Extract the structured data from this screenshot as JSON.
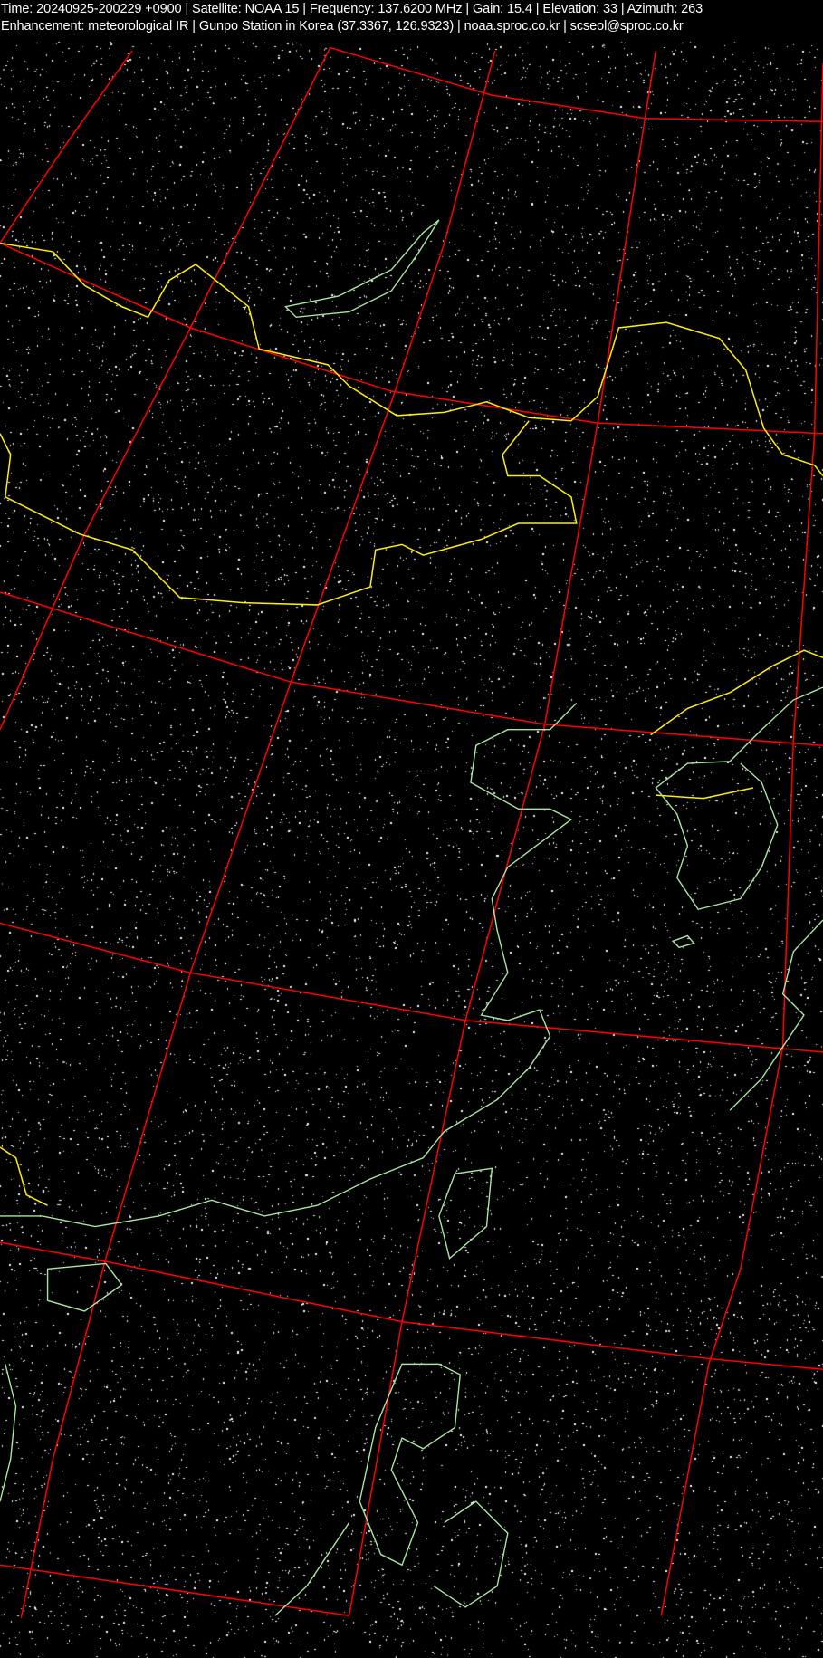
{
  "header": {
    "line1": "Time: 20240925-200229 +0900  |  Satellite: NOAA 15  |  Frequency: 137.6200 MHz  |  Gain: 15.4  |  Elevation: 33  |  Azimuth: 263",
    "line2": "Enhancement: meteorological IR  |  Gunpo Station in Korea (37.3367, 126.9323)  |  noaa.sproc.co.kr   |  scseol@sproc.co.kr"
  },
  "colors": {
    "background": "#000000",
    "graticule": "#ff0000",
    "borders": "#ffee00",
    "coastlines": "#a8e6a0",
    "noise": "#ffffff"
  }
}
